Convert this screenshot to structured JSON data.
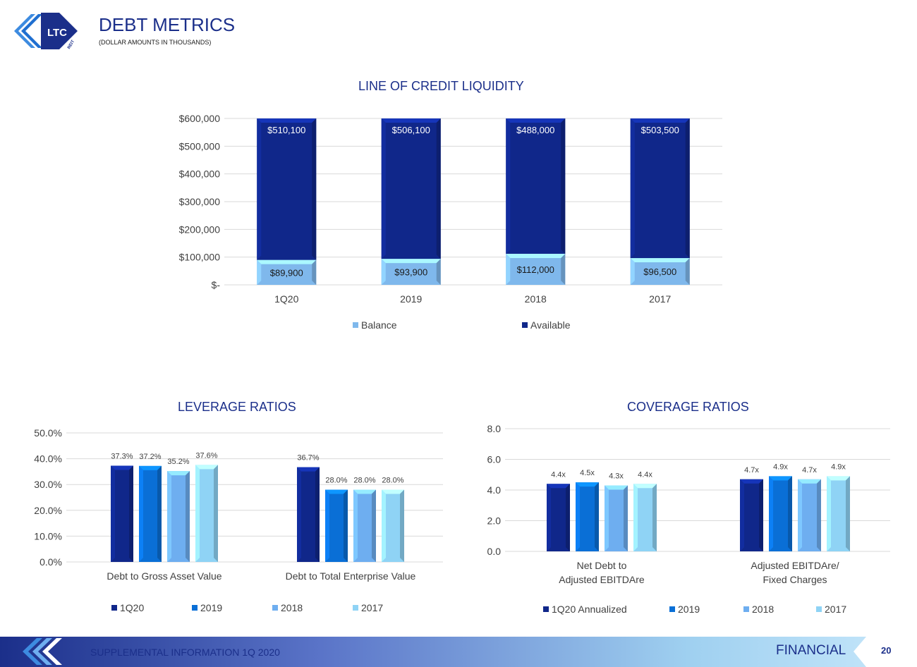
{
  "header": {
    "title": "DEBT METRICS",
    "subtitle": "(DOLLAR AMOUNTS IN THOUSANDS)",
    "logo_text": "LTC",
    "logo_sub": "REIT"
  },
  "footer": {
    "left_text": "SUPPLEMENTAL INFORMATION  1Q 2020",
    "section": "FINANCIAL",
    "page_number": "20"
  },
  "colors": {
    "brand_navy": "#1b2f8a",
    "dark_blue": "#10278a",
    "mid_blue": "#0a6fd6",
    "light_blue": "#6eaef0",
    "pale_blue": "#8fd3f5"
  },
  "chart_data": [
    {
      "id": "loc",
      "type": "bar",
      "stacked": true,
      "title": "LINE OF CREDIT LIQUIDITY",
      "categories": [
        "1Q20",
        "2019",
        "2018",
        "2017"
      ],
      "series": [
        {
          "name": "Balance",
          "values": [
            89900,
            93900,
            112000,
            96500
          ],
          "labels": [
            "$89,900",
            "$93,900",
            "$112,000",
            "$96,500"
          ],
          "color": "#7fb8ec"
        },
        {
          "name": "Available",
          "values": [
            510100,
            506100,
            488000,
            503500
          ],
          "labels": [
            "$510,100",
            "$506,100",
            "$488,000",
            "$503,500"
          ],
          "color": "#10278a"
        }
      ],
      "ylim": [
        0,
        600000
      ],
      "yticks": [
        0,
        100000,
        200000,
        300000,
        400000,
        500000,
        600000
      ],
      "ytick_labels": [
        "$-",
        "$100,000",
        "$200,000",
        "$300,000",
        "$400,000",
        "$500,000",
        "$600,000"
      ],
      "grid": true,
      "legend": "bottom"
    },
    {
      "id": "leverage",
      "type": "bar",
      "title": "LEVERAGE RATIOS",
      "categories": [
        "Debt to Gross Asset Value",
        "Debt to Total Enterprise Value"
      ],
      "series": [
        {
          "name": "1Q20",
          "values": [
            37.3,
            36.7
          ],
          "labels": [
            "37.3%",
            "36.7%"
          ],
          "color": "#10278a"
        },
        {
          "name": "2019",
          "values": [
            37.2,
            28.0
          ],
          "labels": [
            "37.2%",
            "28.0%"
          ],
          "color": "#0a6fd6"
        },
        {
          "name": "2018",
          "values": [
            35.2,
            28.0
          ],
          "labels": [
            "35.2%",
            "28.0%"
          ],
          "color": "#6eaef0"
        },
        {
          "name": "2017",
          "values": [
            37.6,
            28.0
          ],
          "labels": [
            "37.6%",
            "28.0%"
          ],
          "color": "#8fd3f5"
        }
      ],
      "ylim": [
        0,
        50
      ],
      "yticks": [
        0,
        10,
        20,
        30,
        40,
        50
      ],
      "ytick_labels": [
        "0.0%",
        "10.0%",
        "20.0%",
        "30.0%",
        "40.0%",
        "50.0%"
      ],
      "grid": true,
      "legend": "bottom"
    },
    {
      "id": "coverage",
      "type": "bar",
      "title": "COVERAGE RATIOS",
      "categories": [
        [
          "Net Debt to",
          "Adjusted EBITDAre"
        ],
        [
          "Adjusted EBITDAre/",
          "Fixed Charges"
        ]
      ],
      "series": [
        {
          "name": "1Q20 Annualized",
          "values": [
            4.4,
            4.7
          ],
          "labels": [
            "4.4x",
            "4.7x"
          ],
          "color": "#10278a"
        },
        {
          "name": "2019",
          "values": [
            4.5,
            4.9
          ],
          "labels": [
            "4.5x",
            "4.9x"
          ],
          "color": "#0a6fd6"
        },
        {
          "name": "2018",
          "values": [
            4.3,
            4.7
          ],
          "labels": [
            "4.3x",
            "4.7x"
          ],
          "color": "#6eaef0"
        },
        {
          "name": "2017",
          "values": [
            4.4,
            4.9
          ],
          "labels": [
            "4.4x",
            "4.9x"
          ],
          "color": "#8fd3f5"
        }
      ],
      "ylim": [
        0,
        8
      ],
      "yticks": [
        0,
        2,
        4,
        6,
        8
      ],
      "ytick_labels": [
        "0.0",
        "2.0",
        "4.0",
        "6.0",
        "8.0"
      ],
      "grid": true,
      "legend": "bottom"
    }
  ]
}
